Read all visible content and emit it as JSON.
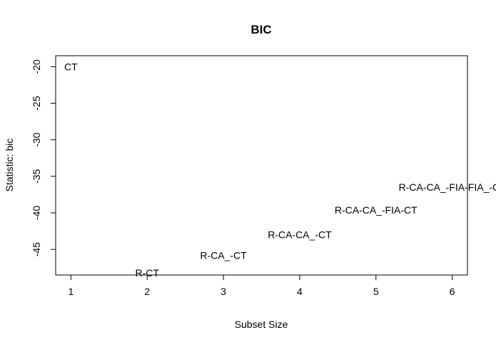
{
  "chart_data": {
    "type": "scatter",
    "title": "BIC",
    "xlabel": "Subset Size",
    "ylabel": "Statistic: bic",
    "xlim": [
      0.8,
      6.2
    ],
    "ylim": [
      -48.5,
      -18.5
    ],
    "xticks": [
      1,
      2,
      3,
      4,
      5,
      6
    ],
    "yticks": [
      -20,
      -25,
      -30,
      -35,
      -40,
      -45
    ],
    "grid": false,
    "points": [
      {
        "x": 1,
        "y": -20.0,
        "label": "CT"
      },
      {
        "x": 2,
        "y": -48.2,
        "label": "R-CT"
      },
      {
        "x": 3,
        "y": -45.8,
        "label": "R-CA_-CT"
      },
      {
        "x": 4,
        "y": -43.0,
        "label": "R-CA-CA_-CT"
      },
      {
        "x": 5,
        "y": -39.6,
        "label": "R-CA-CA_-FIA-CT"
      },
      {
        "x": 6,
        "y": -36.5,
        "label": "R-CA-CA_-FIA-FIA_-CT"
      }
    ]
  }
}
